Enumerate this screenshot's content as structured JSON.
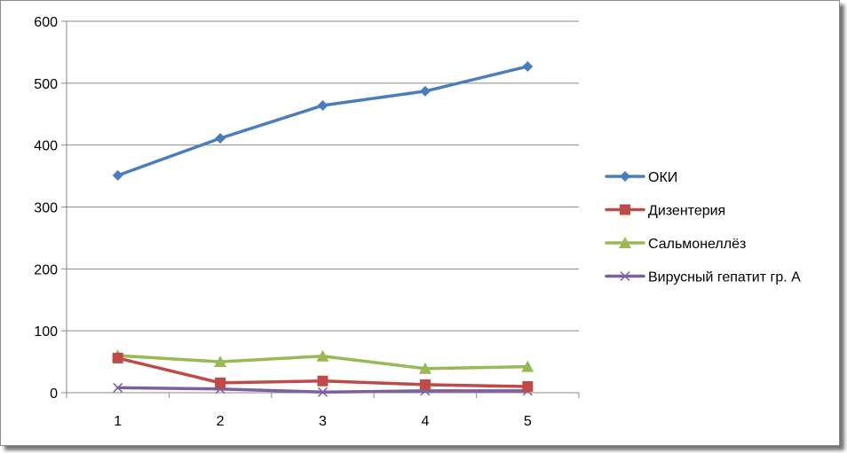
{
  "chart_data": {
    "type": "line",
    "x": [
      1,
      2,
      3,
      4,
      5
    ],
    "ylim": [
      0,
      600
    ],
    "yticks": [
      0,
      100,
      200,
      300,
      400,
      500,
      600
    ],
    "grid": true,
    "legend_position": "right",
    "series": [
      {
        "name": "ОКИ",
        "values": [
          351,
          411,
          464,
          487,
          527
        ],
        "color": "#4a7ebb",
        "marker": "diamond"
      },
      {
        "name": "Дизентерия",
        "values": [
          56,
          16,
          19,
          13,
          10
        ],
        "color": "#be4b48",
        "marker": "square"
      },
      {
        "name": "Сальмонеллёз",
        "values": [
          60,
          50,
          59,
          39,
          42
        ],
        "color": "#98b954",
        "marker": "triangle"
      },
      {
        "name": "Вирусный гепатит гр. А",
        "values": [
          8,
          6,
          1,
          3,
          3
        ],
        "color": "#7d60a0",
        "marker": "x"
      }
    ]
  }
}
